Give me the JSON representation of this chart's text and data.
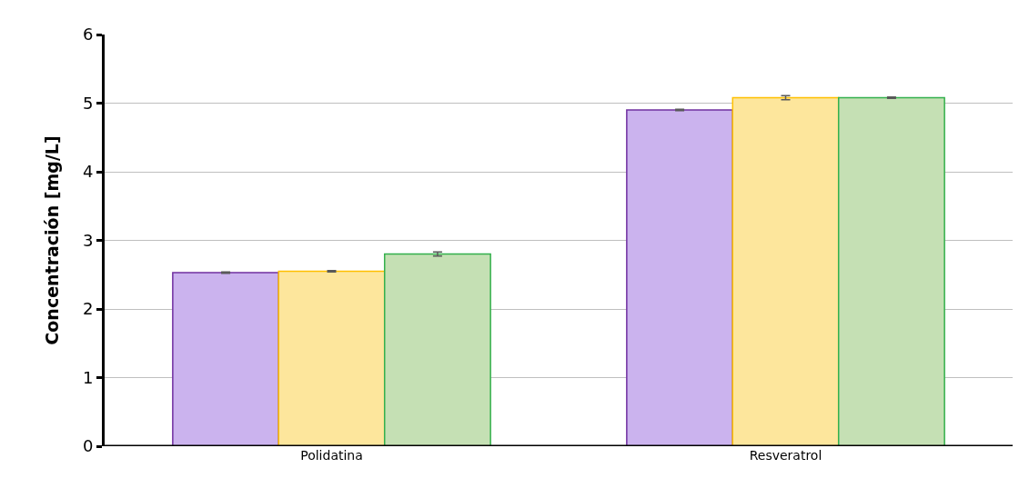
{
  "chart_data": {
    "type": "bar",
    "ylabel": "Concentración [mg/L]",
    "categories": [
      "Polidatina",
      "Resveratrol"
    ],
    "series": [
      {
        "color": "#cbb3ee",
        "values": [
          2.53,
          4.9
        ],
        "errors": [
          0.01,
          0.01
        ]
      },
      {
        "color": "#fde69c",
        "values": [
          2.55,
          5.08
        ],
        "errors": [
          0.01,
          0.03
        ]
      },
      {
        "color": "#c5e0b4",
        "values": [
          2.8,
          5.08
        ],
        "errors": [
          0.03,
          0.01
        ]
      }
    ],
    "ylim": [
      0,
      6
    ],
    "yticks": [
      0,
      1,
      2,
      3,
      4,
      5,
      6
    ],
    "grid": "y"
  }
}
